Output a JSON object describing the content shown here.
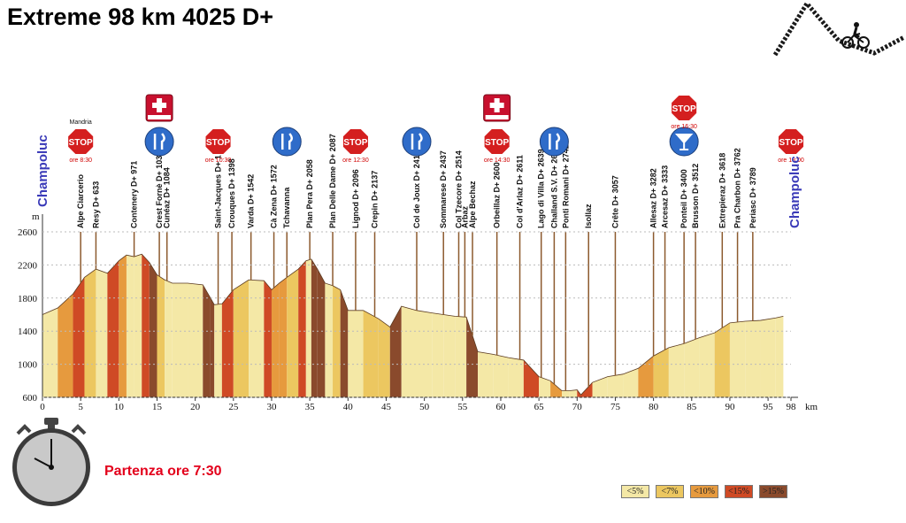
{
  "title": "Extreme 98 km 4025 D+",
  "start_text": "Partenza ore 7:30",
  "start_name": "Champoluc",
  "end_name": "Champoluc",
  "colors": {
    "lt5": "#f4e8a6",
    "lt7": "#ecc760",
    "lt10": "#e69a3e",
    "lt15": "#cf4a25",
    "gt15": "#8a4a2c",
    "ground": "#fbf6d8",
    "stop_red": "#d41f1f",
    "food_blue": "#2f6cc9",
    "end_name": "#3a3ab8",
    "start_text": "#e3001b"
  },
  "legend": [
    {
      "label": "<5%",
      "color": "#f4e8a6"
    },
    {
      "label": "<7%",
      "color": "#ecc760"
    },
    {
      "label": "<10%",
      "color": "#e69a3e"
    },
    {
      "label": "<15%",
      "color": "#cf4a25"
    },
    {
      "label": ">15%",
      "color": "#8a4a2c"
    }
  ],
  "chart_data": {
    "type": "area",
    "title": "Extreme 98 km 4025 D+",
    "xlabel": "km",
    "ylabel": "m",
    "xlim": [
      0,
      98
    ],
    "ylim": [
      600,
      2600
    ],
    "x_ticks": [
      0,
      5,
      10,
      15,
      20,
      25,
      30,
      35,
      40,
      45,
      50,
      55,
      60,
      65,
      70,
      75,
      80,
      85,
      90,
      95,
      98
    ],
    "y_ticks": [
      600,
      1000,
      1400,
      1800,
      2200,
      2600
    ],
    "grid": false,
    "legend_title": "",
    "profile": {
      "km": [
        0,
        2,
        4,
        5.5,
        7,
        8.5,
        10,
        11,
        12,
        13,
        14,
        15,
        16,
        17,
        19,
        21,
        22,
        22.5,
        23.5,
        25,
        27,
        29,
        30,
        31,
        32,
        33.5,
        34.5,
        35.2,
        36,
        37,
        38,
        39,
        40,
        42,
        44,
        45.5,
        47,
        49,
        51,
        52.5,
        54,
        55.5,
        57,
        59,
        61,
        63,
        65,
        66.5,
        68,
        69,
        70,
        70.5,
        72,
        74,
        76,
        78,
        80,
        82,
        84,
        86,
        88,
        90,
        92,
        94,
        96,
        97
      ],
      "elevation": [
        1600,
        1680,
        1850,
        2050,
        2150,
        2100,
        2250,
        2320,
        2300,
        2330,
        2230,
        2080,
        2020,
        1980,
        1980,
        1960,
        1800,
        1720,
        1730,
        1900,
        2020,
        2010,
        1900,
        1980,
        2050,
        2150,
        2250,
        2270,
        2150,
        1980,
        1950,
        1900,
        1650,
        1650,
        1550,
        1450,
        1700,
        1650,
        1620,
        1600,
        1580,
        1570,
        1150,
        1120,
        1080,
        1050,
        850,
        800,
        680,
        680,
        690,
        630,
        780,
        850,
        880,
        950,
        1100,
        1200,
        1250,
        1320,
        1380,
        1500,
        1520,
        1530,
        1560,
        1580
      ]
    },
    "waypoints": [
      {
        "name": "Alpe Ciarcerio",
        "km": 5
      },
      {
        "name": "Resy  D+ 633",
        "km": 7
      },
      {
        "name": "Contenery  D+ 971",
        "km": 12
      },
      {
        "name": "Crest Fornè  D+ 1036",
        "km": 15.3
      },
      {
        "name": "Cunéaz  D+ 1084",
        "km": 16.3
      },
      {
        "name": "Saint-Jacques  D+ 1215",
        "km": 23
      },
      {
        "name": "Crouques  D+ 1398",
        "km": 24.8
      },
      {
        "name": "Varda  D+ 1542",
        "km": 27.3
      },
      {
        "name": "Cà Zena  D+ 1572",
        "km": 30.3
      },
      {
        "name": "Tchavanna",
        "km": 32
      },
      {
        "name": "Plan Pera  D+ 2058",
        "km": 35
      },
      {
        "name": "Plan Delle Dame  D+ 2087",
        "km": 38
      },
      {
        "name": "Lignod  D+ 2096",
        "km": 41
      },
      {
        "name": "Crepin  D+ 2137",
        "km": 43.5
      },
      {
        "name": "Col de Joux  D+ 2413",
        "km": 49
      },
      {
        "name": "Sommarese  D+ 2437",
        "km": 52.5
      },
      {
        "name": "Col Tzecore  D+ 2514",
        "km": 54.5
      },
      {
        "name": "Arbaz",
        "km": 55.3
      },
      {
        "name": "Alpe Bechaz",
        "km": 56.3
      },
      {
        "name": "Orbeillaz  D+ 2600",
        "km": 59.5
      },
      {
        "name": "Col d'Arlaz  D+ 2611",
        "km": 62.5
      },
      {
        "name": "Lago di Villa  D+ 2639",
        "km": 65.3
      },
      {
        "name": "Challand S.V.  D+ 2667",
        "km": 67
      },
      {
        "name": "Ponti Romani  D+ 2742",
        "km": 68.5
      },
      {
        "name": "Isollaz",
        "km": 71.5
      },
      {
        "name": "Crête  D+ 3057",
        "km": 75
      },
      {
        "name": "Allesaz  D+ 3282",
        "km": 80
      },
      {
        "name": "Arcesaz  D+ 3333",
        "km": 81.5
      },
      {
        "name": "Ponteil  D+ 3400",
        "km": 84
      },
      {
        "name": "Brusson  D+ 3512",
        "km": 85.5
      },
      {
        "name": "Extrepieraz  D+ 3618",
        "km": 89
      },
      {
        "name": "Pra Charbon  D+ 3762",
        "km": 91
      },
      {
        "name": "Periasc  D+ 3789",
        "km": 93
      }
    ],
    "aid_icons": [
      {
        "type": "stop",
        "km": 5,
        "top_label": "Mandria",
        "time": "ore 8:30"
      },
      {
        "type": "first-aid",
        "km": 15.3
      },
      {
        "type": "food",
        "km": 15.3
      },
      {
        "type": "stop",
        "km": 23,
        "time": "ore 10:30"
      },
      {
        "type": "food",
        "km": 32
      },
      {
        "type": "stop",
        "km": 41,
        "time": "ore 12:30"
      },
      {
        "type": "food",
        "km": 49
      },
      {
        "type": "first-aid",
        "km": 59.5
      },
      {
        "type": "stop",
        "km": 59.5,
        "time": "ore 14:30"
      },
      {
        "type": "food",
        "km": 67
      },
      {
        "type": "stop",
        "km": 84,
        "time": "ore 16:30"
      },
      {
        "type": "drink",
        "km": 84
      },
      {
        "type": "stop",
        "km": 98,
        "time": "ore 18:00"
      }
    ]
  }
}
